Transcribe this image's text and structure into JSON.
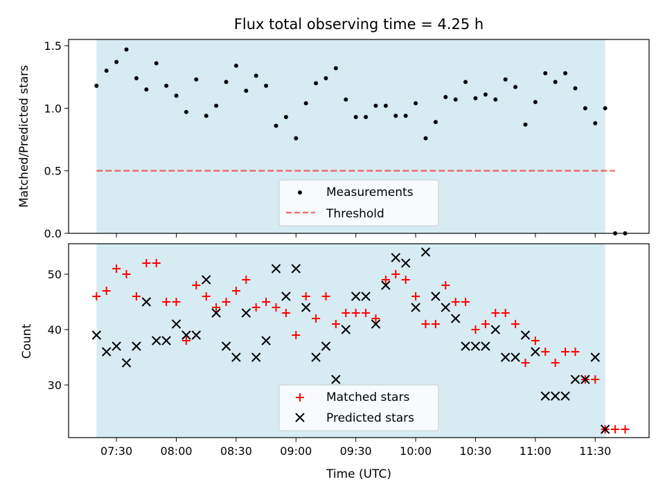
{
  "chart_data": [
    {
      "type": "scatter",
      "title": "Flux total observing time = 4.25 h",
      "ylabel": "Matched/Predicted stars",
      "ylim": [
        0,
        1.55
      ],
      "yticks": [
        0.0,
        0.5,
        1.0,
        1.5
      ],
      "ytick_labels": [
        "0.0",
        "0.5",
        "1.0",
        "1.5"
      ],
      "shaded_span": {
        "start": "07:20",
        "end": "11:35",
        "color": "#add8e6"
      },
      "threshold": {
        "name": "Threshold",
        "value": 0.5,
        "x_start": "07:20",
        "x_end": "11:40",
        "color": "#ff0000"
      },
      "legend": {
        "position": "lower center",
        "entries": [
          "Measurements",
          "Threshold"
        ]
      },
      "series": [
        {
          "name": "Measurements",
          "color": "#000000",
          "marker": "dot",
          "x": [
            "07:20",
            "07:25",
            "07:30",
            "07:35",
            "07:40",
            "07:45",
            "07:50",
            "07:55",
            "08:00",
            "08:05",
            "08:10",
            "08:15",
            "08:20",
            "08:25",
            "08:30",
            "08:35",
            "08:40",
            "08:45",
            "08:50",
            "08:55",
            "09:00",
            "09:05",
            "09:10",
            "09:15",
            "09:20",
            "09:25",
            "09:30",
            "09:35",
            "09:40",
            "09:45",
            "09:50",
            "09:55",
            "10:00",
            "10:05",
            "10:10",
            "10:15",
            "10:20",
            "10:25",
            "10:30",
            "10:35",
            "10:40",
            "10:45",
            "10:50",
            "10:55",
            "11:00",
            "11:05",
            "11:10",
            "11:15",
            "11:20",
            "11:25",
            "11:30",
            "11:35",
            "11:40",
            "11:45"
          ],
          "y": [
            1.18,
            1.3,
            1.37,
            1.47,
            1.24,
            1.15,
            1.36,
            1.18,
            1.1,
            0.97,
            1.23,
            0.94,
            1.02,
            1.21,
            1.34,
            1.14,
            1.26,
            1.18,
            0.86,
            0.93,
            0.76,
            1.04,
            1.2,
            1.24,
            1.32,
            1.07,
            0.93,
            0.93,
            1.02,
            1.02,
            0.94,
            0.94,
            1.04,
            0.76,
            0.89,
            1.09,
            1.07,
            1.21,
            1.08,
            1.11,
            1.07,
            1.23,
            1.17,
            0.87,
            1.05,
            1.28,
            1.21,
            1.28,
            1.16,
            1.0,
            0.88,
            1.0,
            0.0,
            0.0
          ]
        }
      ]
    },
    {
      "type": "scatter",
      "xlabel": "Time (UTC)",
      "ylabel": "Count",
      "ylim": [
        20.5,
        55.5
      ],
      "yticks": [
        30,
        40,
        50
      ],
      "ytick_labels": [
        "30",
        "40",
        "50"
      ],
      "xticks": [
        "07:30",
        "08:00",
        "08:30",
        "09:00",
        "09:30",
        "10:00",
        "10:30",
        "11:00",
        "11:30"
      ],
      "xlim": [
        "07:06",
        "11:57"
      ],
      "shaded_span": {
        "start": "07:20",
        "end": "11:35",
        "color": "#add8e6"
      },
      "legend": {
        "position": "lower center",
        "entries": [
          "Matched stars",
          "Predicted stars"
        ]
      },
      "series": [
        {
          "name": "Matched stars",
          "color": "#ff0000",
          "marker": "plus",
          "x": [
            "07:20",
            "07:25",
            "07:30",
            "07:35",
            "07:40",
            "07:45",
            "07:50",
            "07:55",
            "08:00",
            "08:05",
            "08:10",
            "08:15",
            "08:20",
            "08:25",
            "08:30",
            "08:35",
            "08:40",
            "08:45",
            "08:50",
            "08:55",
            "09:00",
            "09:05",
            "09:10",
            "09:15",
            "09:20",
            "09:25",
            "09:30",
            "09:35",
            "09:40",
            "09:45",
            "09:50",
            "09:55",
            "10:00",
            "10:05",
            "10:10",
            "10:15",
            "10:20",
            "10:25",
            "10:30",
            "10:35",
            "10:40",
            "10:45",
            "10:50",
            "10:55",
            "11:00",
            "11:05",
            "11:10",
            "11:15",
            "11:20",
            "11:25",
            "11:30",
            "11:35",
            "11:40",
            "11:45"
          ],
          "y": [
            46,
            47,
            51,
            50,
            46,
            52,
            52,
            45,
            45,
            38,
            48,
            46,
            44,
            45,
            47,
            49,
            44,
            45,
            44,
            43,
            39,
            46,
            42,
            46,
            41,
            43,
            43,
            43,
            42,
            49,
            50,
            49,
            46,
            41,
            41,
            48,
            45,
            45,
            40,
            41,
            43,
            43,
            41,
            34,
            38,
            36,
            34,
            36,
            36,
            31,
            31,
            22,
            22,
            22
          ]
        },
        {
          "name": "Predicted stars",
          "color": "#000000",
          "marker": "x",
          "x": [
            "07:20",
            "07:25",
            "07:30",
            "07:35",
            "07:40",
            "07:45",
            "07:50",
            "07:55",
            "08:00",
            "08:05",
            "08:10",
            "08:15",
            "08:20",
            "08:25",
            "08:30",
            "08:35",
            "08:40",
            "08:45",
            "08:50",
            "08:55",
            "09:00",
            "09:05",
            "09:10",
            "09:15",
            "09:20",
            "09:25",
            "09:30",
            "09:35",
            "09:40",
            "09:45",
            "09:50",
            "09:55",
            "10:00",
            "10:05",
            "10:10",
            "10:15",
            "10:20",
            "10:25",
            "10:30",
            "10:35",
            "10:40",
            "10:45",
            "10:50",
            "10:55",
            "11:00",
            "11:05",
            "11:10",
            "11:15",
            "11:20",
            "11:25",
            "11:30",
            "11:35"
          ],
          "y": [
            39,
            36,
            37,
            34,
            37,
            45,
            38,
            38,
            41,
            39,
            39,
            49,
            43,
            37,
            35,
            43,
            35,
            38,
            51,
            46,
            51,
            44,
            35,
            37,
            31,
            40,
            46,
            46,
            41,
            48,
            53,
            52,
            44,
            54,
            46,
            44,
            42,
            37,
            37,
            37,
            40,
            35,
            35,
            39,
            36,
            28,
            28,
            28,
            31,
            31,
            35,
            22
          ]
        }
      ]
    }
  ]
}
